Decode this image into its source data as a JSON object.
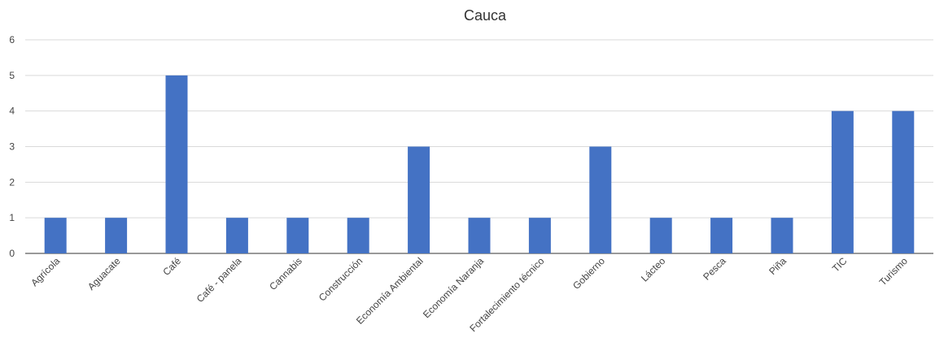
{
  "chart_data": {
    "type": "bar",
    "title": "Cauca",
    "xlabel": "",
    "ylabel": "",
    "categories": [
      "Agrícola",
      "Aguacate",
      "Café",
      "Café - panela",
      "Cannabis",
      "Construcción",
      "Economía Ambiental",
      "Economía Naranja",
      "Fortalecimiento técnico",
      "Gobierno",
      "Lácteo",
      "Pesca",
      "Piña",
      "TIC",
      "Turismo"
    ],
    "values": [
      1,
      1,
      5,
      1,
      1,
      1,
      3,
      1,
      1,
      3,
      1,
      1,
      1,
      4,
      4
    ],
    "ylim": [
      0,
      6
    ],
    "yticks": [
      0,
      1,
      2,
      3,
      4,
      5,
      6
    ],
    "grid": true,
    "legend": "none",
    "bar_color": "#4472c4"
  }
}
